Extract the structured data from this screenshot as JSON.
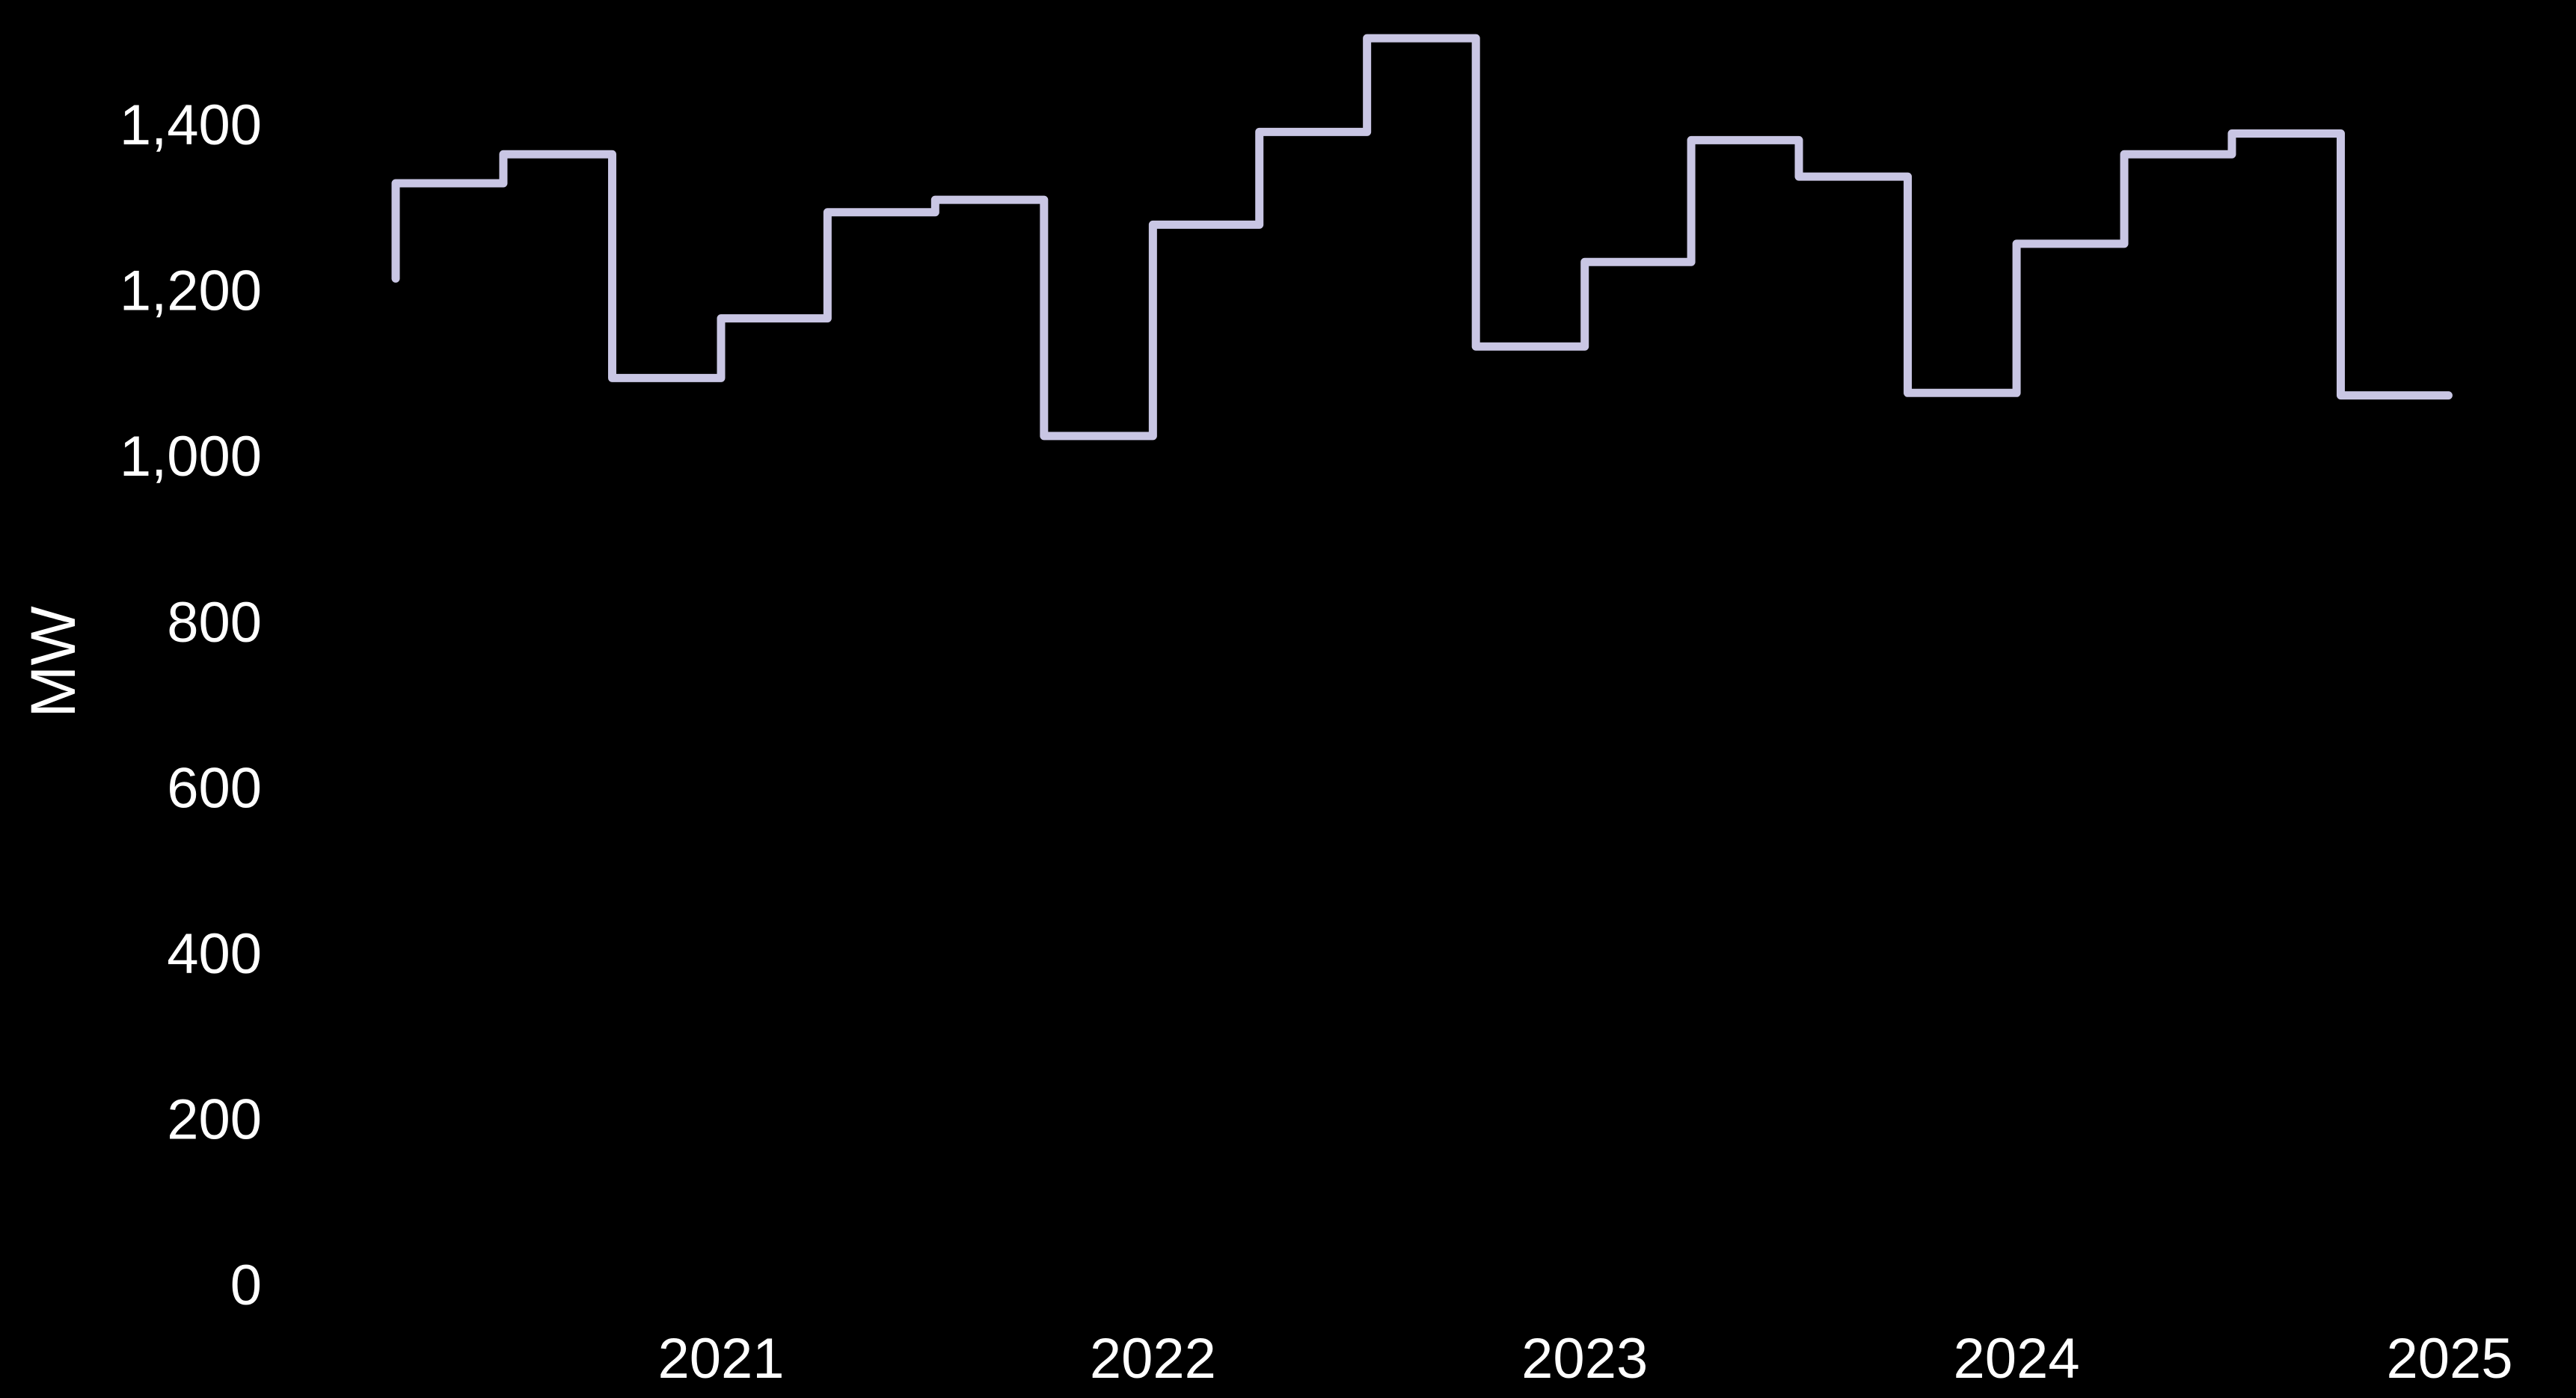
{
  "chart_data": {
    "type": "line",
    "step": "post",
    "title": "",
    "xlabel": "",
    "ylabel": "MW",
    "ylim": [
      0,
      1400
    ],
    "yticks": [
      0,
      200,
      400,
      600,
      800,
      1000,
      1200,
      1400
    ],
    "ytick_labels": [
      "0",
      "200",
      "400",
      "600",
      "800",
      "1,000",
      "1,200",
      "1,400"
    ],
    "xticks": [
      "2021-01-01",
      "2022-01-01",
      "2023-01-01",
      "2024-01-01",
      "2025-01-01"
    ],
    "xtick_labels": [
      "2021",
      "2022",
      "2023",
      "2024",
      "2025"
    ],
    "grid": false,
    "colors": {
      "background": "#000000",
      "text": "#ffffff",
      "series": "#c9c6e4"
    },
    "series": [
      {
        "name": "",
        "x": [
          "2020-04-01",
          "2020-07-01",
          "2020-10-01",
          "2021-01-01",
          "2021-04-01",
          "2021-07-01",
          "2021-10-01",
          "2022-01-01",
          "2022-04-01",
          "2022-07-01",
          "2022-10-01",
          "2023-01-01",
          "2023-04-01",
          "2023-07-01",
          "2023-10-01",
          "2024-01-01",
          "2024-04-01",
          "2024-07-01",
          "2024-10-01",
          "2024-12-31"
        ],
        "values": [
          1335,
          1370,
          1100,
          1172,
          1300,
          1315,
          1030,
          1285,
          1397,
          1510,
          1138,
          1240,
          1387,
          1343,
          1082,
          1262,
          1370,
          1395,
          1079,
          1079
        ],
        "start_value": 1220
      }
    ]
  }
}
